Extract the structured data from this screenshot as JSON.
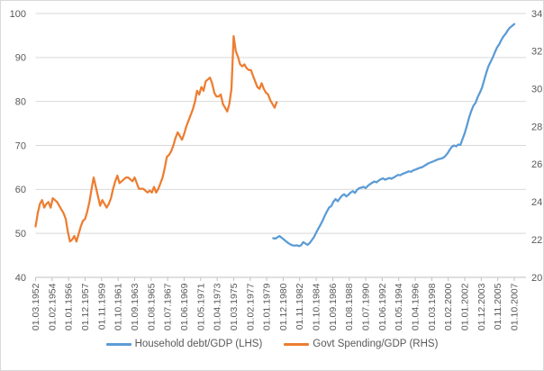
{
  "chart_data": {
    "type": "line",
    "title": "",
    "grid": true,
    "legend_position": "bottom",
    "x_range": {
      "first_label": "01.03.1952",
      "last_label": "01.10.2007",
      "label_interval_months": 23
    },
    "x_tick_labels": [
      "01.03.1952",
      "01.02.1954",
      "01.01.1956",
      "01.12.1957",
      "01.11.1959",
      "01.10.1961",
      "01.09.1963",
      "01.08.1965",
      "01.07.1967",
      "01.06.1969",
      "01.05.1971",
      "01.04.1973",
      "01.03.1975",
      "01.02.1977",
      "01.01.1979",
      "01.12.1980",
      "01.11.1982",
      "01.10.1984",
      "01.09.1986",
      "01.08.1988",
      "01.07.1990",
      "01.06.1992",
      "01.05.1994",
      "01.04.1996",
      "01.03.1998",
      "01.02.2000",
      "01.01.2002",
      "01.12.2003",
      "01.11.2005",
      "01.10.2007"
    ],
    "left_axis": {
      "min": 40,
      "max": 100,
      "step": 10,
      "ticks": [
        100,
        90,
        80,
        70,
        60,
        50,
        40
      ]
    },
    "right_axis": {
      "min": 20,
      "max": 34,
      "step": 2,
      "ticks": [
        34,
        32,
        30,
        28,
        26,
        24,
        22,
        20
      ]
    },
    "series": [
      {
        "name": "Household debt/GDP (LHS)",
        "axis": "left",
        "color": "#5B9BD5",
        "start": "1979-10",
        "step_months": 3,
        "values": [
          48.9,
          48.8,
          49.1,
          49.4,
          49.0,
          48.6,
          48.2,
          47.8,
          47.5,
          47.3,
          47.2,
          47.3,
          47.1,
          47.3,
          48.0,
          47.7,
          47.4,
          47.8,
          48.5,
          49.2,
          50.2,
          51.1,
          52.0,
          52.9,
          54.0,
          55.0,
          55.9,
          56.2,
          57.2,
          57.8,
          57.3,
          58.0,
          58.6,
          58.9,
          58.4,
          58.8,
          59.3,
          59.6,
          59.2,
          59.9,
          60.3,
          60.4,
          60.6,
          60.3,
          60.8,
          61.2,
          61.5,
          61.8,
          61.6,
          62.0,
          62.3,
          62.5,
          62.2,
          62.4,
          62.6,
          62.4,
          62.7,
          63.0,
          63.3,
          63.2,
          63.5,
          63.7,
          63.9,
          64.1,
          64.0,
          64.3,
          64.5,
          64.7,
          64.9,
          65.0,
          65.3,
          65.6,
          65.9,
          66.1,
          66.3,
          66.5,
          66.7,
          66.9,
          67.0,
          67.2,
          67.6,
          68.2,
          69.0,
          69.7,
          70.0,
          69.8,
          70.2,
          70.1,
          71.5,
          72.8,
          74.5,
          76.3,
          77.8,
          79.0,
          79.7,
          81.0,
          82.0,
          83.1,
          84.8,
          86.5,
          88.0,
          89.0,
          90.0,
          91.2,
          92.3,
          93.0,
          94.0,
          94.8,
          95.4,
          96.2,
          96.8,
          97.2,
          97.6
        ]
      },
      {
        "name": "Govt Spending/GDP (RHS)",
        "axis": "right",
        "color": "#ED7D31",
        "start": "1952-03",
        "step_months": 3,
        "values": [
          22.7,
          23.4,
          23.9,
          24.1,
          23.7,
          23.9,
          24.0,
          23.7,
          24.2,
          24.1,
          24.0,
          23.8,
          23.6,
          23.4,
          23.1,
          22.4,
          21.9,
          22.0,
          22.2,
          21.9,
          22.3,
          22.7,
          23.0,
          23.1,
          23.5,
          24.0,
          24.7,
          25.3,
          24.8,
          24.3,
          23.8,
          24.1,
          23.9,
          23.7,
          23.9,
          24.2,
          24.7,
          25.1,
          25.4,
          25.0,
          25.1,
          25.2,
          25.3,
          25.3,
          25.2,
          25.1,
          25.3,
          25.0,
          24.7,
          24.7,
          24.7,
          24.6,
          24.5,
          24.6,
          24.5,
          24.8,
          24.5,
          24.7,
          25.0,
          25.3,
          25.8,
          26.4,
          26.5,
          26.7,
          27.0,
          27.4,
          27.7,
          27.5,
          27.3,
          27.6,
          28.0,
          28.3,
          28.6,
          28.9,
          29.3,
          29.9,
          29.7,
          30.1,
          29.9,
          30.4,
          30.5,
          30.6,
          30.3,
          29.8,
          29.6,
          29.6,
          29.7,
          29.2,
          29.0,
          28.8,
          29.2,
          30.0,
          32.8,
          32.0,
          31.7,
          31.3,
          31.2,
          31.3,
          31.1,
          31.0,
          31.0,
          30.7,
          30.4,
          30.1,
          30.0,
          30.3,
          30.0,
          29.8,
          29.7,
          29.4,
          29.2,
          29.0,
          29.3
        ]
      }
    ],
    "colors": {
      "text": "#595959",
      "gridline": "#D9D9D9",
      "axis_line": "#BFBFBF",
      "series_blue": "#5B9BD5",
      "series_orange": "#ED7D31"
    }
  }
}
